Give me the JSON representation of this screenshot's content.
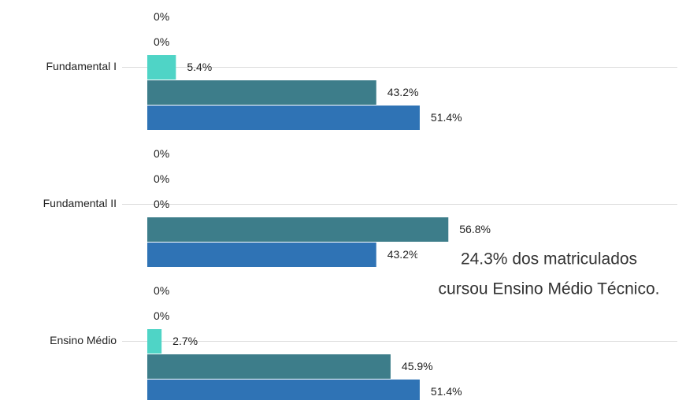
{
  "chart_data": {
    "type": "bar",
    "orientation": "horizontal",
    "categories": [
      "Fundamental I",
      "Fundamental II",
      "Ensino Médio"
    ],
    "series": [
      {
        "color": "#8fd8cf",
        "values": [
          0,
          0,
          0
        ],
        "value_labels": [
          "0%",
          "0%",
          "0%"
        ]
      },
      {
        "color": "#6fb3c2",
        "values": [
          0,
          0,
          0
        ],
        "value_labels": [
          "0%",
          "0%",
          "0%"
        ]
      },
      {
        "color": "#4fd4c6",
        "values": [
          5.4,
          0,
          2.7
        ],
        "value_labels": [
          "5.4%",
          "0%",
          "2.7%"
        ]
      },
      {
        "color": "#3d7d8a",
        "values": [
          43.2,
          56.8,
          45.9
        ],
        "value_labels": [
          "43.2%",
          "56.8%",
          "45.9%"
        ]
      },
      {
        "color": "#2f73b5",
        "values": [
          51.4,
          43.2,
          51.4
        ],
        "value_labels": [
          "51.4%",
          "43.2%",
          "51.4%"
        ]
      }
    ],
    "xlim": [
      0,
      100
    ],
    "annotation": [
      "24.3% dos matriculados",
      "cursou Ensino Médio Técnico."
    ]
  }
}
